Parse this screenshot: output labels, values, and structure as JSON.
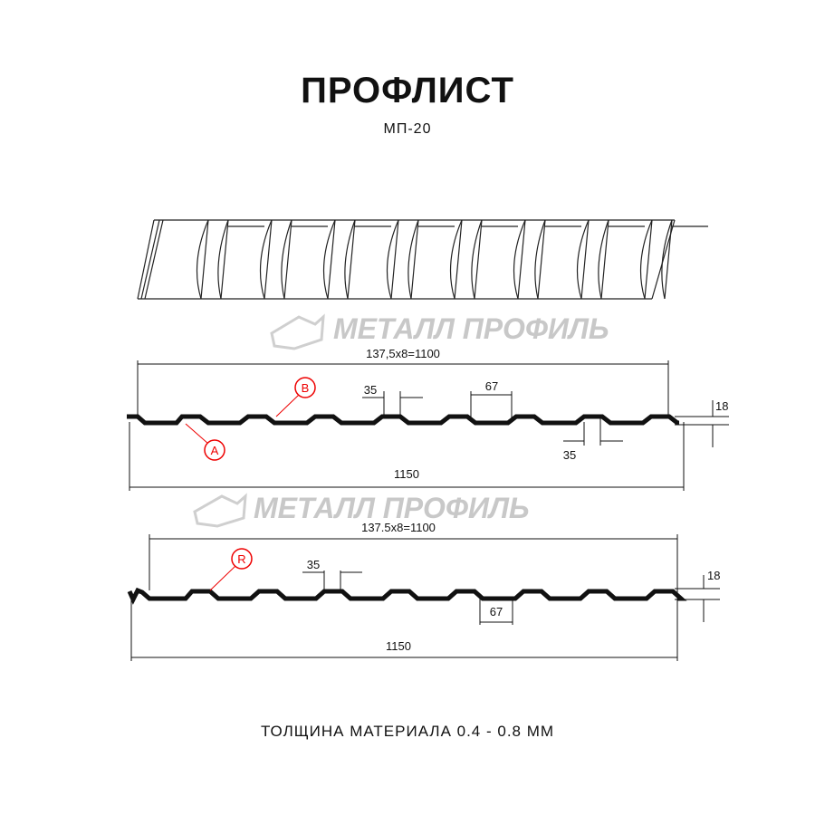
{
  "header": {
    "title": "ПРОФЛИСТ",
    "subtitle": "МП-20"
  },
  "watermark": {
    "text": "МЕТАЛЛ ПРОФИЛЬ"
  },
  "profile_a": {
    "top_dimension": "137,5x8=1100",
    "bottom_dimension": "1150",
    "crest_width": "35",
    "crest_width_lower": "35",
    "valley_width": "67",
    "height": "18",
    "callout_a": "A",
    "callout_b": "B"
  },
  "profile_r": {
    "top_dimension": "137.5x8=1100",
    "bottom_dimension": "1150",
    "crest_width": "35",
    "valley_width": "67",
    "height": "18",
    "callout_r": "R"
  },
  "footer": {
    "thickness": "ТОЛЩИНА МАТЕРИАЛА 0.4 - 0.8 ММ"
  },
  "colors": {
    "line": "#111111",
    "callout": "#e00000",
    "watermark": "#c8c8c8"
  }
}
